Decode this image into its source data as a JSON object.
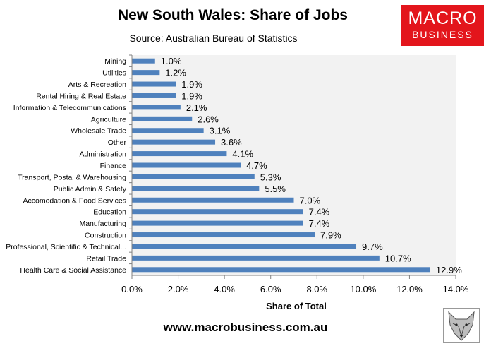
{
  "header": {
    "logo_line1": "MACRO",
    "logo_line2": "BUSINESS"
  },
  "footer": {
    "url": "www.macrobusiness.com.au"
  },
  "colors": {
    "bar": "#4f81bd",
    "plot_bg": "#f2f2f2",
    "logo_bg": "#e3151c"
  },
  "icons": {
    "wolf": "wolf-icon"
  },
  "chart_data": {
    "type": "bar",
    "orientation": "horizontal",
    "title": "New South Wales: Share of Jobs",
    "subtitle": "Source: Australian Bureau of Statistics",
    "xlabel": "Share of Total",
    "ylabel": "",
    "xlim": [
      0,
      14
    ],
    "x_ticks": [
      "0.0%",
      "2.0%",
      "4.0%",
      "6.0%",
      "8.0%",
      "10.0%",
      "12.0%",
      "14.0%"
    ],
    "grid": false,
    "legend": "none",
    "categories": [
      "Mining",
      "Utilities",
      "Arts & Recreation",
      "Rental Hiring & Real Estate",
      "Information & Telecommunications",
      "Agriculture",
      "Wholesale Trade",
      "Other",
      "Administration",
      "Finance",
      "Transport, Postal & Warehousing",
      "Public Admin & Safety",
      "Accomodation & Food Services",
      "Education",
      "Manufacturing",
      "Construction",
      "Professional, Scientific & Technical...",
      "Retail Trade",
      "Health Care & Social Assistance"
    ],
    "values": [
      1.0,
      1.2,
      1.9,
      1.9,
      2.1,
      2.6,
      3.1,
      3.6,
      4.1,
      4.7,
      5.3,
      5.5,
      7.0,
      7.4,
      7.4,
      7.9,
      9.7,
      10.7,
      12.9
    ],
    "value_labels": [
      "1.0%",
      "1.2%",
      "1.9%",
      "1.9%",
      "2.1%",
      "2.6%",
      "3.1%",
      "3.6%",
      "4.1%",
      "4.7%",
      "5.3%",
      "5.5%",
      "7.0%",
      "7.4%",
      "7.4%",
      "7.9%",
      "9.7%",
      "10.7%",
      "12.9%"
    ]
  }
}
